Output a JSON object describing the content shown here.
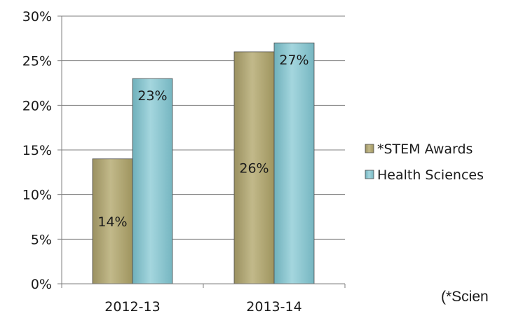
{
  "chart_data": {
    "type": "bar",
    "categories": [
      "2012-13",
      "2013-14"
    ],
    "series": [
      {
        "name": "*STEM Awards",
        "values": [
          14,
          26
        ],
        "labels": [
          "14%",
          "26%"
        ],
        "color": "#b5ab7a"
      },
      {
        "name": "Health Sciences",
        "values": [
          23,
          27
        ],
        "labels": [
          "23%",
          "27%"
        ],
        "color": "#8fc6cf"
      }
    ],
    "ylim": [
      0,
      30
    ],
    "yticks": [
      "0%",
      "5%",
      "10%",
      "15%",
      "20%",
      "25%",
      "30%"
    ],
    "grid": true,
    "legend": "right"
  },
  "footnote": "(*Scien"
}
